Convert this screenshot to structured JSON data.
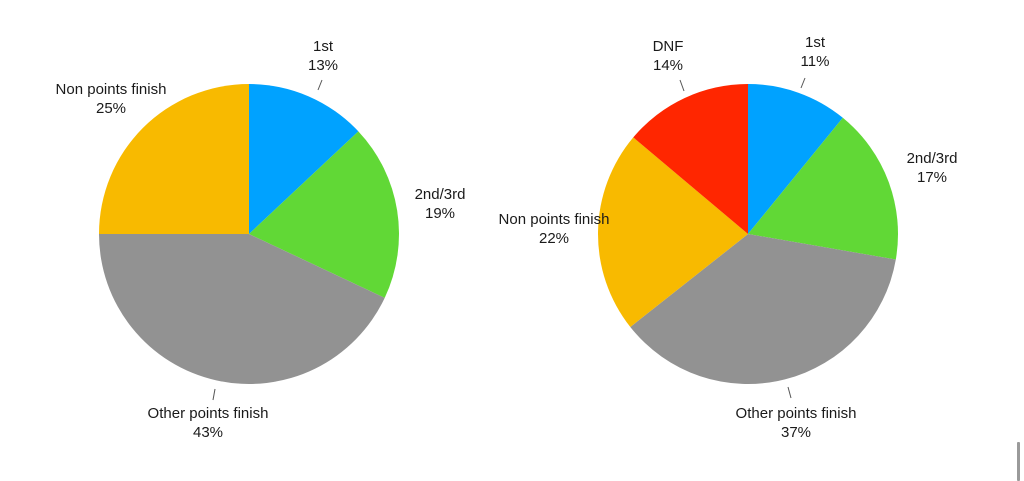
{
  "chart_data": [
    {
      "type": "pie",
      "title": "",
      "categories": [
        "1st",
        "2nd/3rd",
        "Other points finish",
        "Non points finish"
      ],
      "values": [
        13,
        19,
        43,
        25
      ],
      "value_labels": [
        "13%",
        "19%",
        "43%",
        "25%"
      ],
      "colors": [
        "#00A2FF",
        "#61D836",
        "#929292",
        "#F8BA00"
      ],
      "start_angle": "12 o'clock, clockwise",
      "legend": "none (direct labels)"
    },
    {
      "type": "pie",
      "title": "",
      "categories": [
        "1st",
        "2nd/3rd",
        "Other points finish",
        "Non points finish",
        "DNF"
      ],
      "values": [
        11,
        17,
        37,
        22,
        14
      ],
      "value_labels": [
        "11%",
        "17%",
        "37%",
        "22%",
        "14%"
      ],
      "colors": [
        "#00A2FF",
        "#61D836",
        "#929292",
        "#F8BA00",
        "#FF2600"
      ],
      "start_angle": "12 o'clock, clockwise",
      "legend": "none (direct labels)"
    }
  ],
  "left": {
    "labels": [
      {
        "name": "1st",
        "pct": "13%"
      },
      {
        "name": "2nd/3rd",
        "pct": "19%"
      },
      {
        "name": "Other points finish",
        "pct": "43%"
      },
      {
        "name": "Non points finish",
        "pct": "25%"
      }
    ]
  },
  "right": {
    "labels": [
      {
        "name": "1st",
        "pct": "11%"
      },
      {
        "name": "2nd/3rd",
        "pct": "17%"
      },
      {
        "name": "Other points finish",
        "pct": "37%"
      },
      {
        "name": "Non points finish",
        "pct": "22%"
      },
      {
        "name": "DNF",
        "pct": "14%"
      }
    ]
  }
}
